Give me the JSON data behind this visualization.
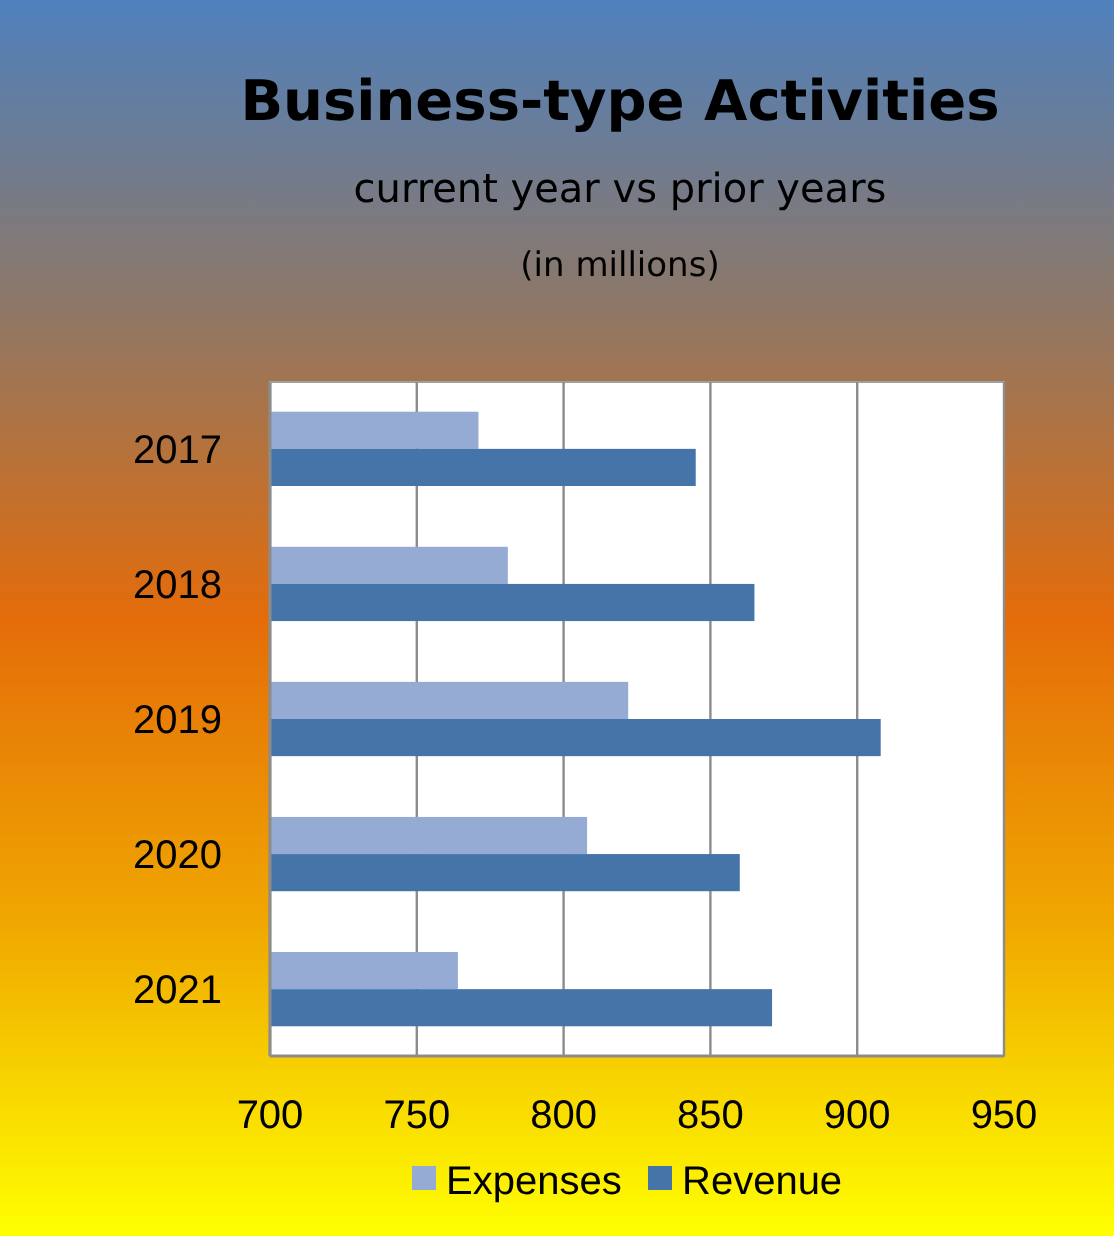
{
  "chart_data": {
    "type": "bar",
    "orientation": "horizontal",
    "title": "Business-type Activities",
    "subtitle": "current year vs prior years",
    "annotations": [
      "(in millions)"
    ],
    "categories": [
      "2017",
      "2018",
      "2019",
      "2020",
      "2021"
    ],
    "series": [
      {
        "name": "Expenses",
        "color": "#95abd3",
        "values": [
          771,
          781,
          822,
          808,
          764
        ]
      },
      {
        "name": "Revenue",
        "color": "#4574a8",
        "values": [
          845,
          865,
          908,
          860,
          871
        ]
      }
    ],
    "xlim": [
      700,
      950
    ],
    "xticks": [
      700,
      750,
      800,
      850,
      900,
      950
    ],
    "grid": "x",
    "legend": "bottom"
  }
}
